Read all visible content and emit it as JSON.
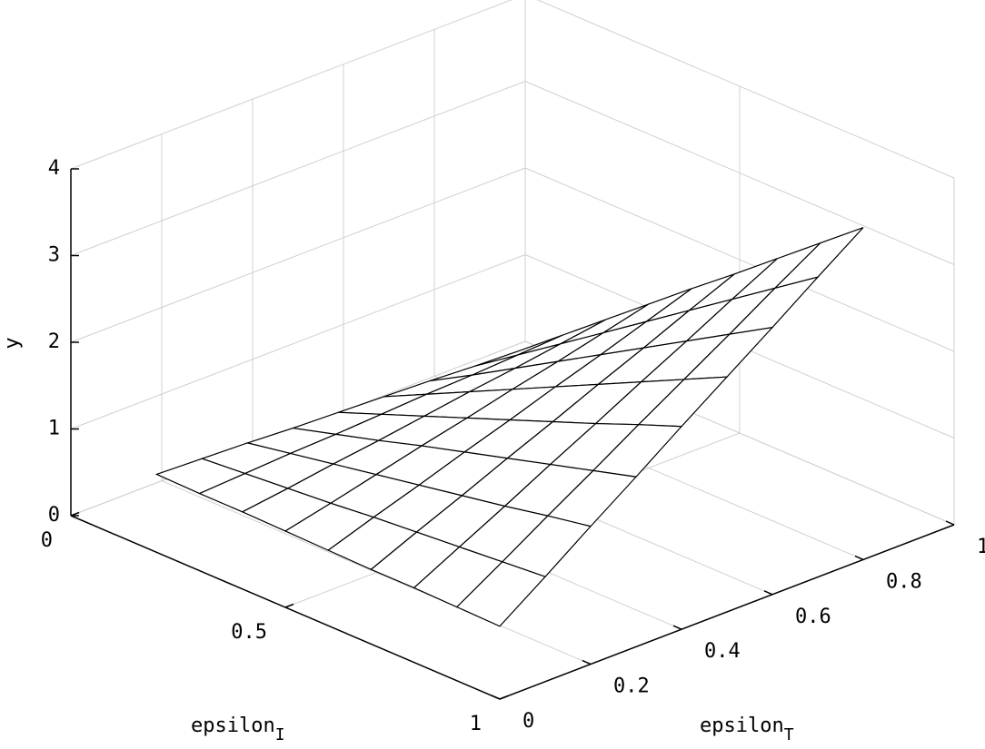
{
  "chart_data": {
    "type": "surface3d",
    "xlabel": "epsilon",
    "xlabel_sub": "I",
    "ylabel": "epsilon",
    "ylabel_sub": "T",
    "zlabel": "y",
    "xlim": [
      0,
      1
    ],
    "xticks": [
      0,
      0.5,
      1
    ],
    "ylim": [
      0,
      1
    ],
    "yticks": [
      0,
      0.2,
      0.4,
      0.6,
      0.8,
      1
    ],
    "zlim": [
      0,
      4
    ],
    "zticks": [
      0,
      1,
      2,
      3,
      4
    ],
    "grid": true,
    "color": "#000000",
    "x": [
      0.2,
      0.3,
      0.4,
      0.5,
      0.6,
      0.7,
      0.8,
      0.9,
      1.0
    ],
    "y": [
      0,
      0.1,
      0.2,
      0.3,
      0.4,
      0.5,
      0.6,
      0.7,
      0.8
    ],
    "z": [
      [
        0.9,
        0.88,
        0.86,
        0.83,
        0.81,
        0.79,
        0.77,
        0.74,
        0.72
      ],
      [
        0.89,
        0.92,
        0.95,
        0.97,
        1.0,
        1.03,
        1.05,
        1.08,
        1.11
      ],
      [
        0.89,
        0.96,
        1.04,
        1.11,
        1.19,
        1.27,
        1.34,
        1.42,
        1.5
      ],
      [
        0.88,
        1.0,
        1.13,
        1.26,
        1.38,
        1.51,
        1.63,
        1.76,
        1.89
      ],
      [
        0.87,
        1.05,
        1.22,
        1.4,
        1.57,
        1.75,
        1.92,
        2.1,
        2.28
      ],
      [
        0.86,
        1.09,
        1.31,
        1.54,
        1.76,
        1.99,
        2.21,
        2.44,
        2.66
      ],
      [
        0.86,
        1.13,
        1.4,
        1.68,
        1.95,
        2.23,
        2.5,
        2.78,
        3.05
      ],
      [
        0.85,
        1.17,
        1.5,
        1.82,
        2.15,
        2.47,
        2.79,
        3.12,
        3.44
      ],
      [
        0.84,
        1.21,
        1.59,
        1.96,
        2.34,
        2.71,
        3.08,
        3.46,
        3.83
      ]
    ]
  }
}
